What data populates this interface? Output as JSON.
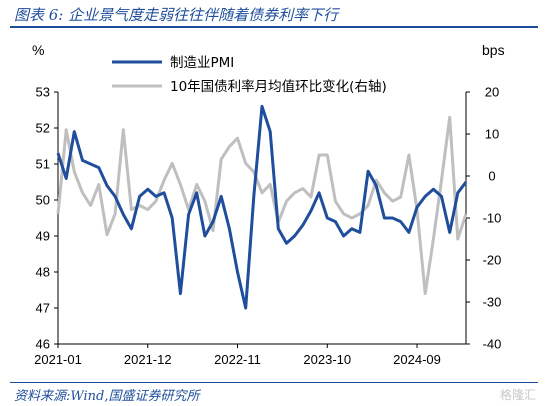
{
  "header": {
    "title": "图表 6:  企业景气度走弱往往伴随着债券利率下行"
  },
  "footer": {
    "source": "资料来源:Wind,国盛证券研究所",
    "watermark": "格隆汇"
  },
  "chart_data": {
    "type": "line",
    "x_ticks": [
      "2021-01",
      "2021-12",
      "2022-11",
      "2023-10",
      "2024-09"
    ],
    "left_axis": {
      "unit": "%",
      "ylim": [
        46,
        53
      ],
      "ticks": [
        46,
        47,
        48,
        49,
        50,
        51,
        52,
        53
      ]
    },
    "right_axis": {
      "unit": "bps",
      "ylim": [
        -40,
        20
      ],
      "ticks": [
        -40,
        -30,
        -20,
        -10,
        0,
        10,
        20
      ]
    },
    "legend_placement": "top-center",
    "series": [
      {
        "name": "制造业PMI",
        "axis": "left",
        "color": "#1f4e9c",
        "x": [
          "2021-01",
          "2021-02",
          "2021-03",
          "2021-04",
          "2021-05",
          "2021-06",
          "2021-07",
          "2021-08",
          "2021-09",
          "2021-10",
          "2021-11",
          "2021-12",
          "2022-01",
          "2022-02",
          "2022-03",
          "2022-04",
          "2022-05",
          "2022-06",
          "2022-07",
          "2022-08",
          "2022-09",
          "2022-10",
          "2022-11",
          "2022-12",
          "2023-01",
          "2023-02",
          "2023-03",
          "2023-04",
          "2023-05",
          "2023-06",
          "2023-07",
          "2023-08",
          "2023-09",
          "2023-10",
          "2023-11",
          "2023-12",
          "2024-01",
          "2024-02",
          "2024-03",
          "2024-04",
          "2024-05",
          "2024-06",
          "2024-07",
          "2024-08",
          "2024-09",
          "2024-10",
          "2024-11",
          "2024-12",
          "2025-01",
          "2025-02",
          "2025-03"
        ],
        "values": [
          51.3,
          50.6,
          51.9,
          51.1,
          51.0,
          50.9,
          50.4,
          50.1,
          49.6,
          49.2,
          50.1,
          50.3,
          50.1,
          50.2,
          49.5,
          47.4,
          49.6,
          50.2,
          49.0,
          49.4,
          50.1,
          49.2,
          48.0,
          47.0,
          50.1,
          52.6,
          51.9,
          49.2,
          48.8,
          49.0,
          49.3,
          49.7,
          50.2,
          49.5,
          49.4,
          49.0,
          49.2,
          49.1,
          50.8,
          50.4,
          49.5,
          49.5,
          49.4,
          49.1,
          49.8,
          50.1,
          50.3,
          50.1,
          49.1,
          50.2,
          50.5
        ]
      },
      {
        "name": "10年国债利率月均值环比变化(右轴)",
        "axis": "right",
        "color": "#bfbfbf",
        "x": [
          "2021-01",
          "2021-02",
          "2021-03",
          "2021-04",
          "2021-05",
          "2021-06",
          "2021-07",
          "2021-08",
          "2021-09",
          "2021-10",
          "2021-11",
          "2021-12",
          "2022-01",
          "2022-02",
          "2022-03",
          "2022-04",
          "2022-05",
          "2022-06",
          "2022-07",
          "2022-08",
          "2022-09",
          "2022-10",
          "2022-11",
          "2022-12",
          "2023-01",
          "2023-02",
          "2023-03",
          "2023-04",
          "2023-05",
          "2023-06",
          "2023-07",
          "2023-08",
          "2023-09",
          "2023-10",
          "2023-11",
          "2023-12",
          "2024-01",
          "2024-02",
          "2024-03",
          "2024-04",
          "2024-05",
          "2024-06",
          "2024-07",
          "2024-08",
          "2024-09",
          "2024-10",
          "2024-11",
          "2024-12",
          "2025-01",
          "2025-02",
          "2025-03"
        ],
        "values": [
          -9,
          11,
          1,
          -4,
          -7,
          -2,
          -14,
          -9,
          11,
          -8,
          -7,
          -8,
          -6,
          -1,
          3,
          -2,
          -8,
          -2,
          -6,
          -13,
          4,
          7,
          9,
          3,
          1,
          -4,
          -2,
          -11,
          -6,
          -4,
          -3,
          -5,
          5,
          5,
          -6,
          -9,
          -10,
          -9,
          -7,
          -1,
          -4,
          -6,
          -5,
          5,
          -8,
          -28,
          -15,
          -1,
          14,
          -15,
          -9
        ]
      }
    ]
  }
}
